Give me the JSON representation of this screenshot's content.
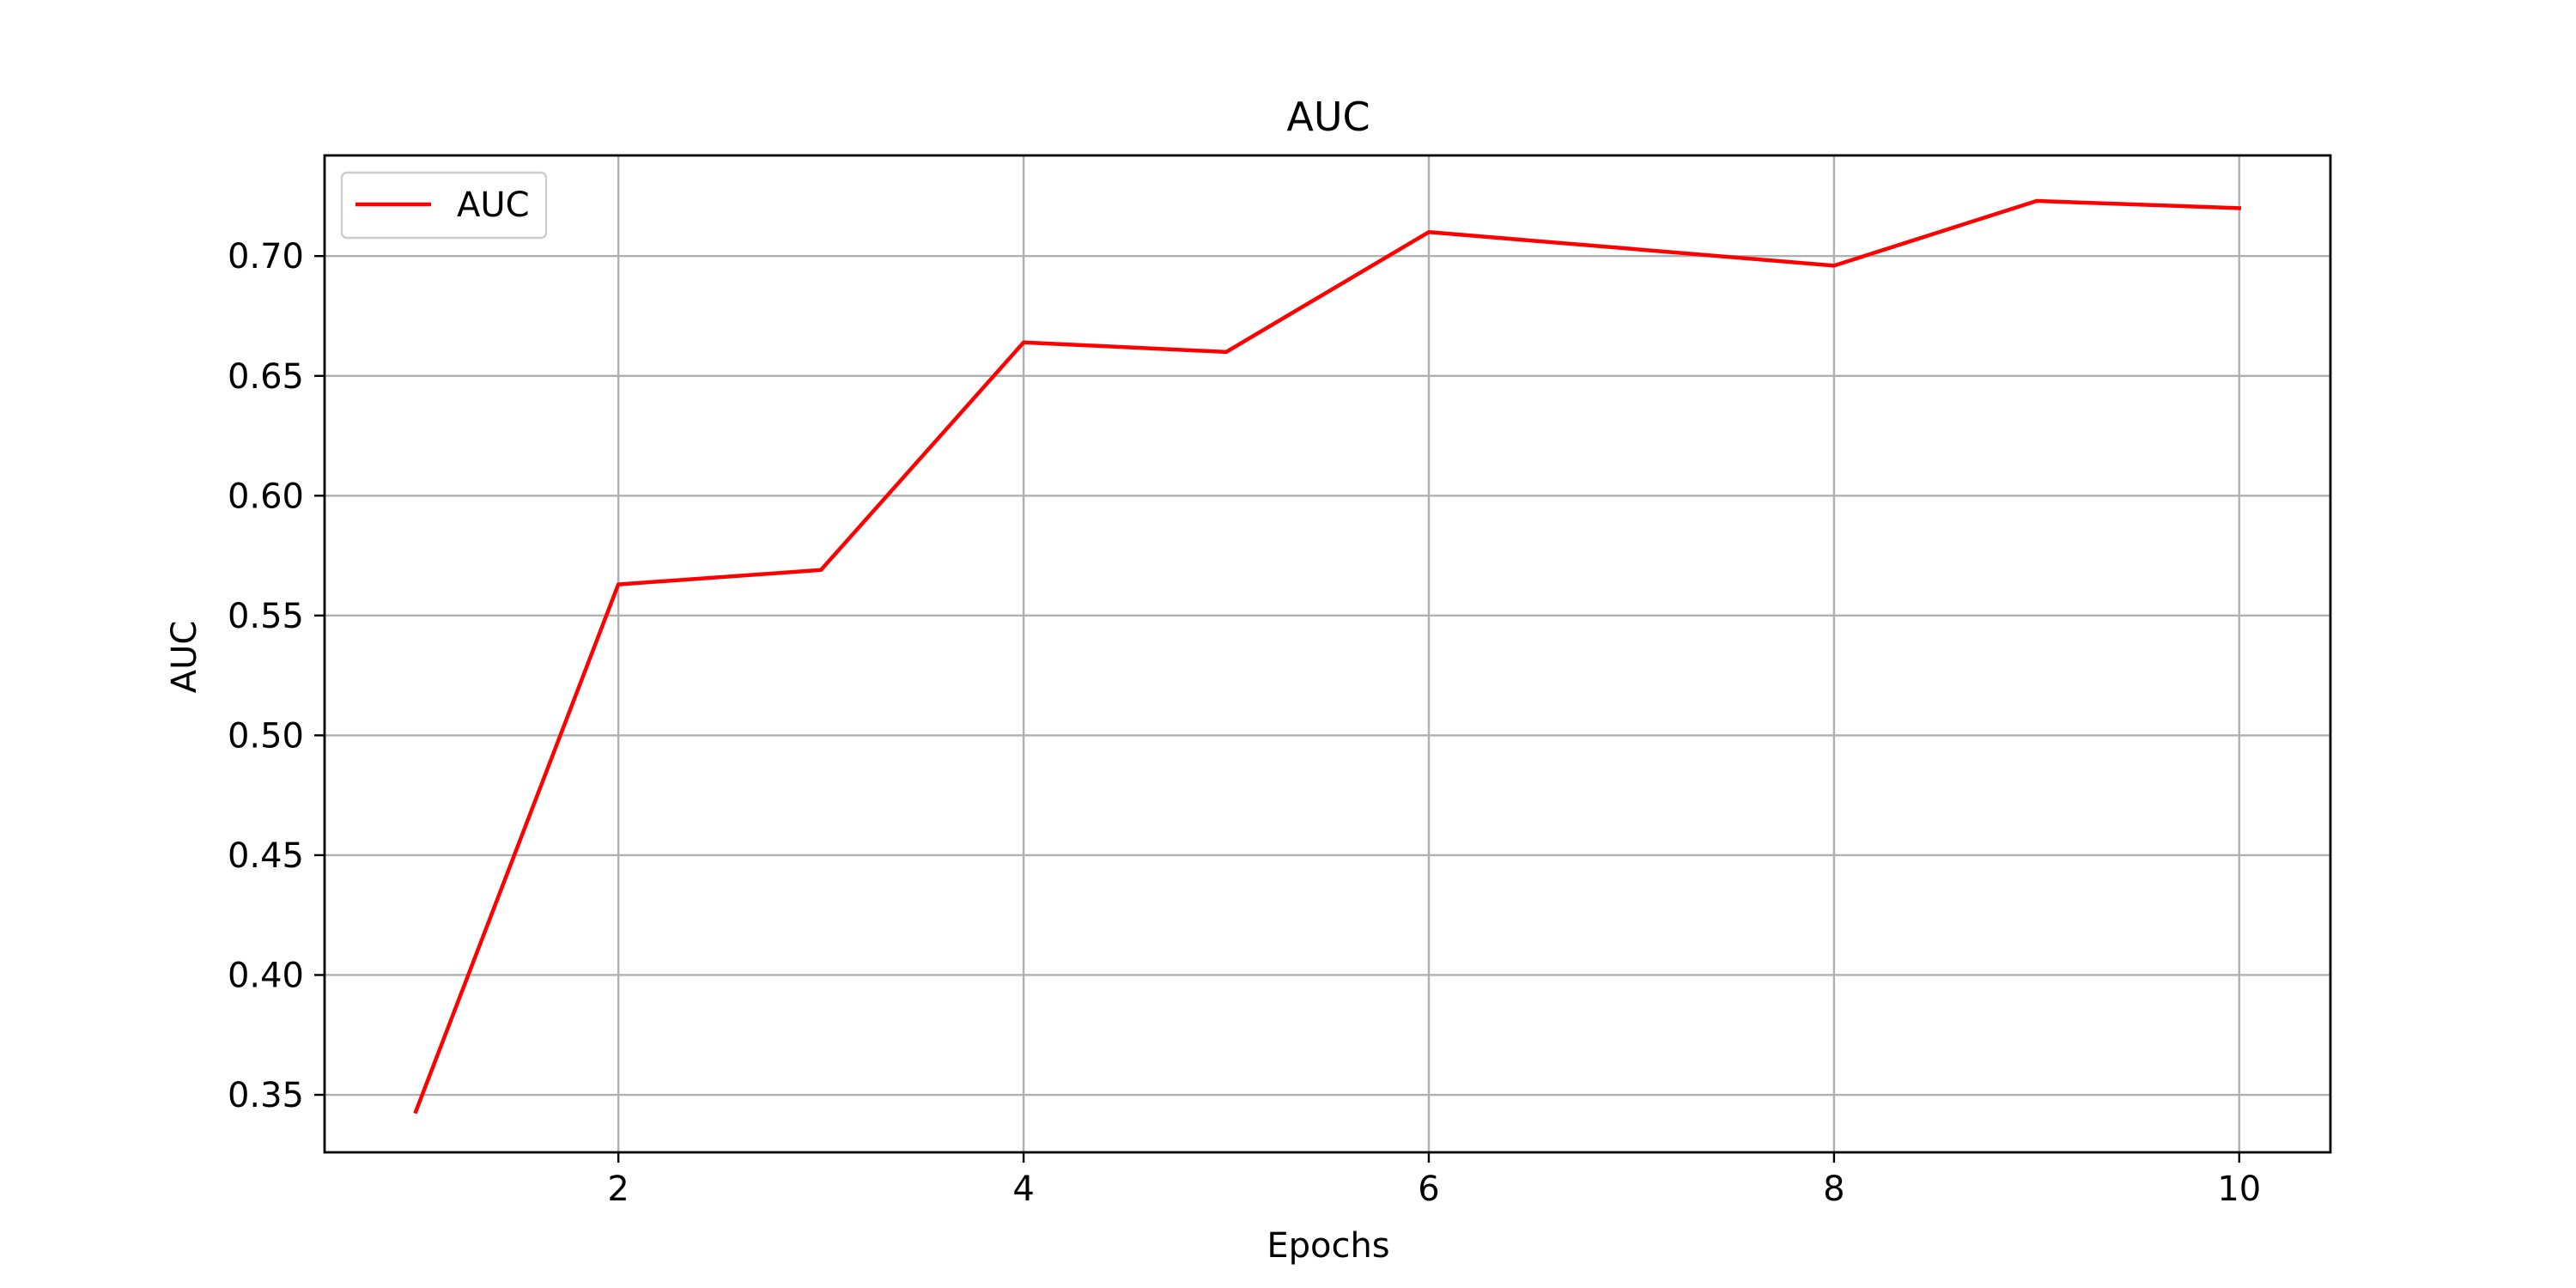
{
  "chart_data": {
    "type": "line",
    "title": "AUC",
    "xlabel": "Epochs",
    "ylabel": "AUC",
    "xlim": [
      0.55,
      10.45
    ],
    "ylim": [
      0.326,
      0.742
    ],
    "x_ticks": [
      2,
      4,
      6,
      8,
      10
    ],
    "x_tick_labels": [
      "2",
      "4",
      "6",
      "8",
      "10"
    ],
    "y_ticks": [
      0.35,
      0.4,
      0.45,
      0.5,
      0.55,
      0.6,
      0.65,
      0.7
    ],
    "y_tick_labels": [
      "0.35",
      "0.40",
      "0.45",
      "0.50",
      "0.55",
      "0.60",
      "0.65",
      "0.70"
    ],
    "grid": true,
    "legend": {
      "placement": "upper-left",
      "entries": [
        "AUC"
      ]
    },
    "series": [
      {
        "name": "AUC",
        "color": "#ff0000",
        "x": [
          1,
          2,
          3,
          4,
          5,
          6,
          7,
          8,
          9,
          10
        ],
        "y": [
          0.343,
          0.563,
          0.569,
          0.664,
          0.66,
          0.71,
          0.703,
          0.696,
          0.723,
          0.72
        ]
      }
    ]
  },
  "colors": {
    "grid": "#b0b0b0",
    "axes": "#000000",
    "legend_border": "#cccccc"
  }
}
